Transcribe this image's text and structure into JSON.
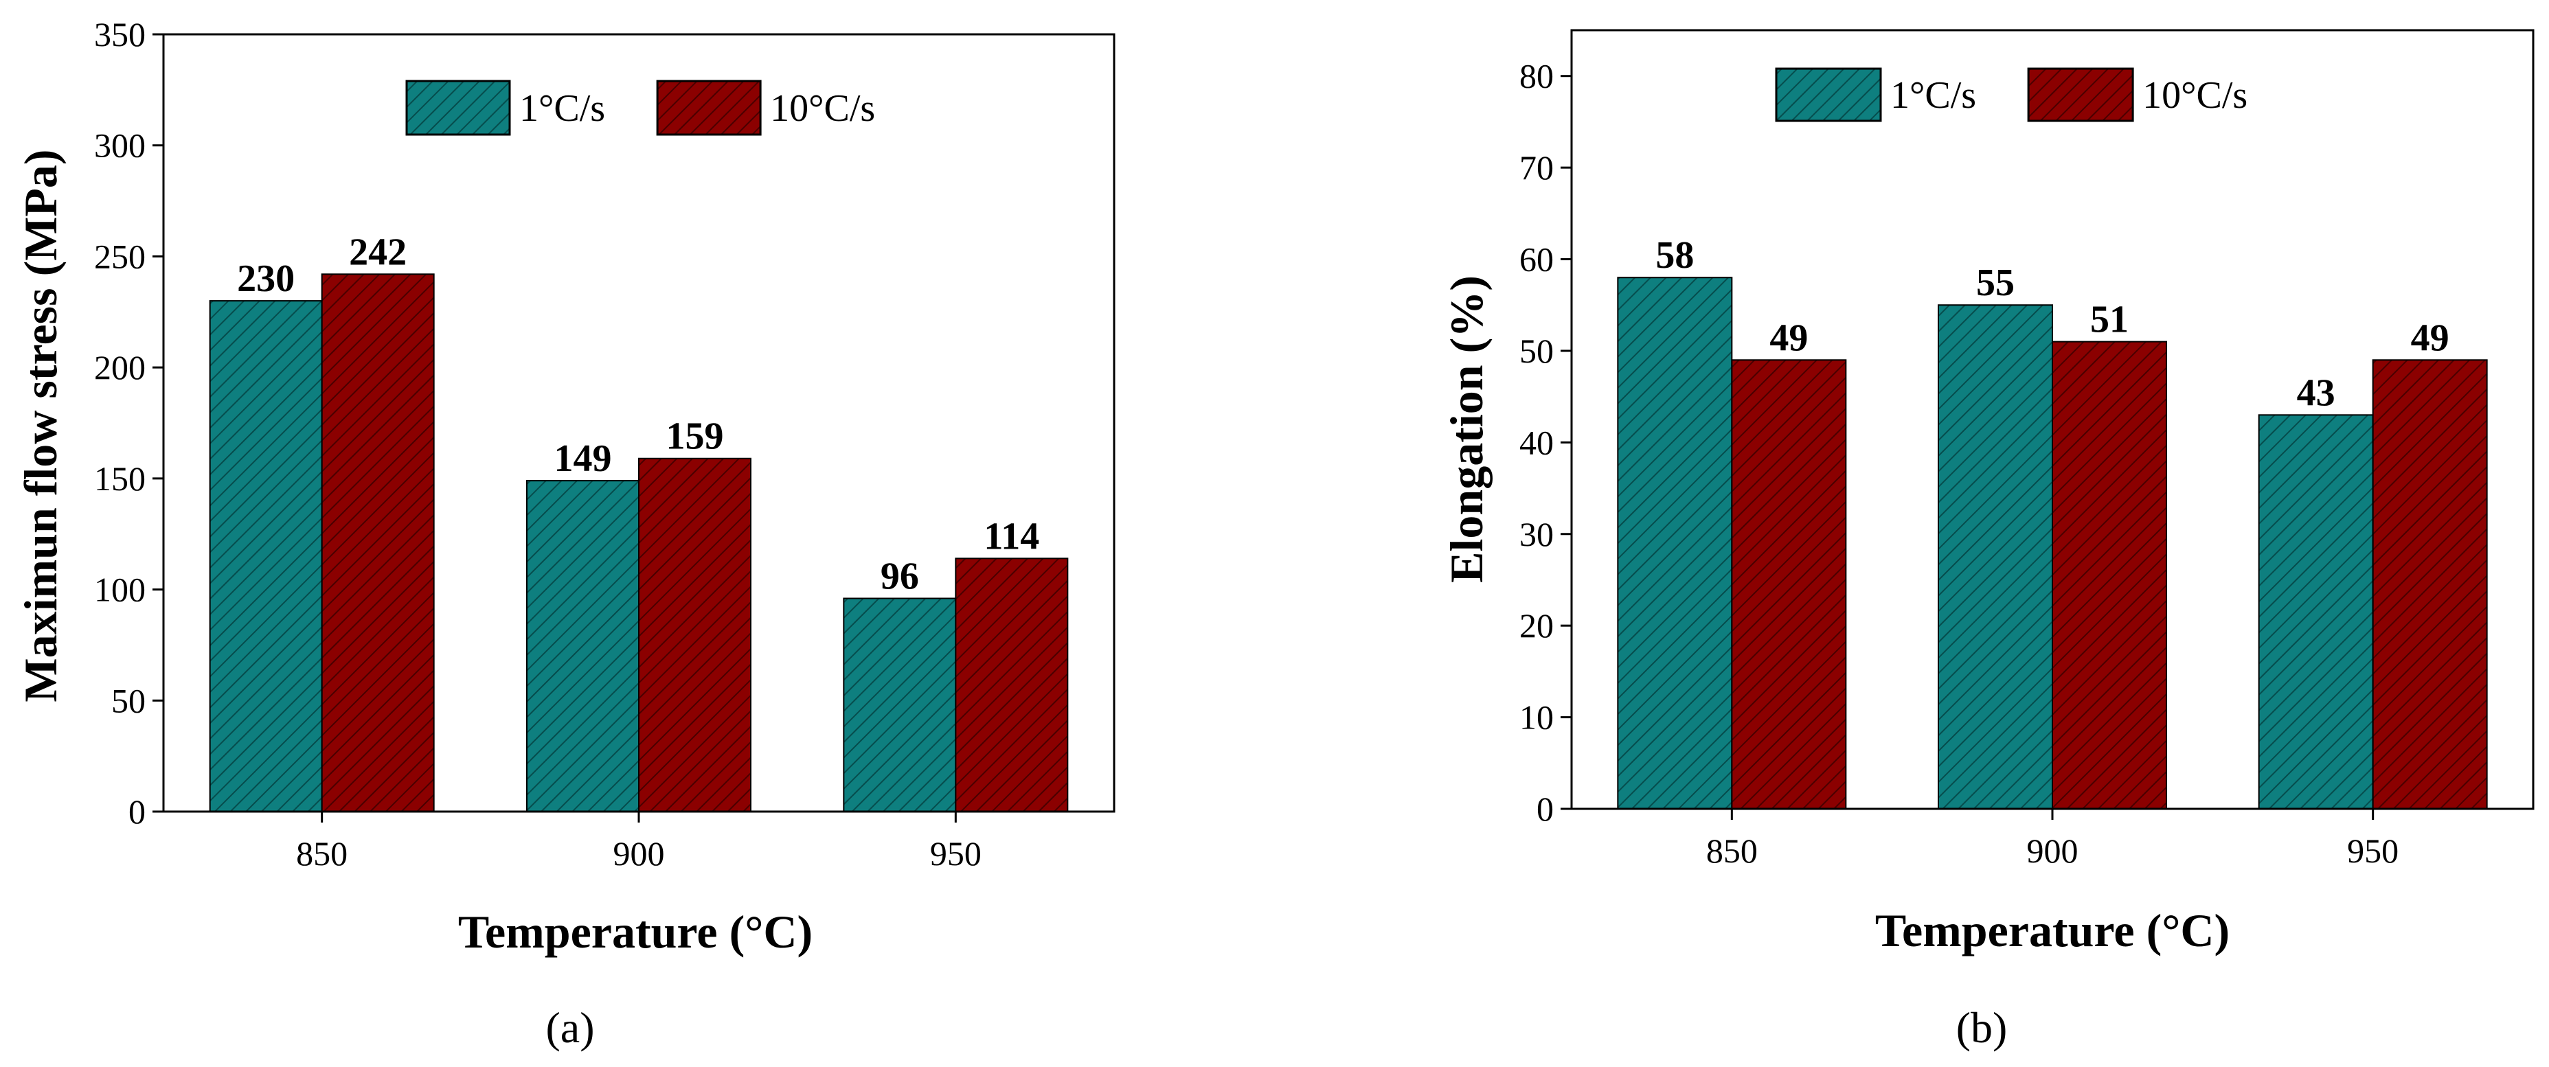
{
  "chart_data": [
    {
      "type": "bar",
      "panel_label": "(a)",
      "categories": [
        "850",
        "900",
        "950"
      ],
      "series": [
        {
          "name": "1°C/s",
          "values": [
            230,
            149,
            96
          ],
          "color": "#0e7f7f"
        },
        {
          "name": "10°C/s",
          "values": [
            242,
            159,
            114
          ],
          "color": "#8b0000"
        }
      ],
      "xlabel": "Temperature (°C)",
      "ylabel": "Maximun flow stress (MPa)",
      "ylim": [
        0,
        350
      ],
      "yticks": [
        0,
        50,
        100,
        150,
        200,
        250,
        300,
        350
      ],
      "legend_position": "top",
      "data_labels": true
    },
    {
      "type": "bar",
      "panel_label": "(b)",
      "categories": [
        "850",
        "900",
        "950"
      ],
      "series": [
        {
          "name": "1°C/s",
          "values": [
            58,
            55,
            43
          ],
          "color": "#0e7f7f"
        },
        {
          "name": "10°C/s",
          "values": [
            49,
            51,
            49
          ],
          "color": "#8b0000"
        }
      ],
      "xlabel": "Temperature (°C)",
      "ylabel": "Elongation (%)",
      "ylim": [
        0,
        85
      ],
      "yticks": [
        0,
        10,
        20,
        30,
        40,
        50,
        60,
        70,
        80
      ],
      "legend_position": "top",
      "data_labels": true
    }
  ]
}
